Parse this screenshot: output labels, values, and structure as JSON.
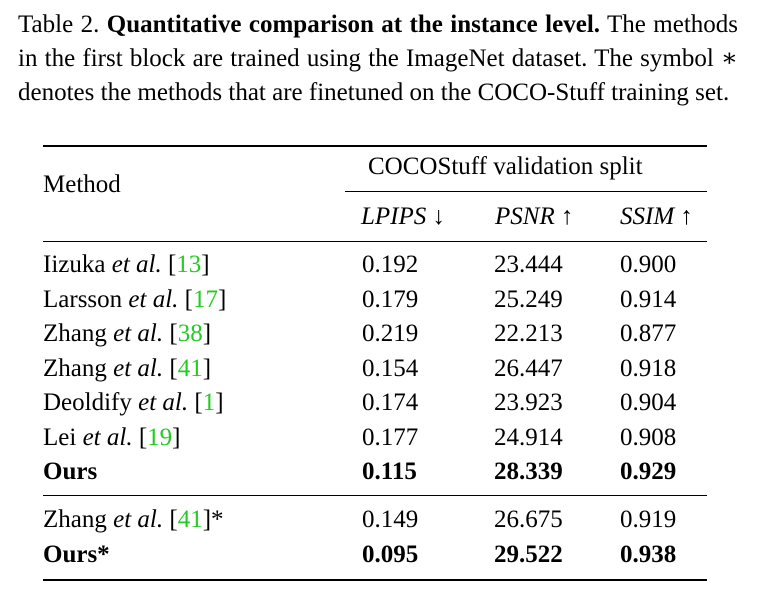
{
  "caption": {
    "label": "Table 2.",
    "title": "Quantitative comparison at the instance level.",
    "body": "The methods in the first block are trained using the ImageNet dataset. The symbol ∗ denotes the methods that are finetuned on the COCO-Stuff training set."
  },
  "table": {
    "method_header": "Method",
    "group_header": "COCOStuff validation split",
    "columns": [
      "LPIPS ↓",
      "PSNR ↑",
      "SSIM ↑"
    ],
    "rows": [
      {
        "name": "Iizuka",
        "etal": "et al.",
        "ref": "13",
        "suffix": "",
        "values": [
          "0.192",
          "23.444",
          "0.900"
        ],
        "bold": false
      },
      {
        "name": "Larsson",
        "etal": "et al.",
        "ref": "17",
        "suffix": "",
        "values": [
          "0.179",
          "25.249",
          "0.914"
        ],
        "bold": false
      },
      {
        "name": "Zhang",
        "etal": "et al.",
        "ref": "38",
        "suffix": "",
        "values": [
          "0.219",
          "22.213",
          "0.877"
        ],
        "bold": false
      },
      {
        "name": "Zhang",
        "etal": "et al.",
        "ref": "41",
        "suffix": "",
        "values": [
          "0.154",
          "26.447",
          "0.918"
        ],
        "bold": false
      },
      {
        "name": "Deoldify",
        "etal": "et al.",
        "ref": "1",
        "suffix": "",
        "values": [
          "0.174",
          "23.923",
          "0.904"
        ],
        "bold": false
      },
      {
        "name": "Lei",
        "etal": "et al.",
        "ref": "19",
        "suffix": "",
        "values": [
          "0.177",
          "24.914",
          "0.908"
        ],
        "bold": false
      },
      {
        "name": "Ours",
        "etal": "",
        "ref": "",
        "suffix": "",
        "values": [
          "0.115",
          "28.339",
          "0.929"
        ],
        "bold": true
      }
    ],
    "rows2": [
      {
        "name": "Zhang",
        "etal": "et al.",
        "ref": "41",
        "suffix": "*",
        "values": [
          "0.149",
          "26.675",
          "0.919"
        ],
        "bold": false
      },
      {
        "name": "Ours*",
        "etal": "",
        "ref": "",
        "suffix": "",
        "values": [
          "0.095",
          "29.522",
          "0.938"
        ],
        "bold": true
      }
    ]
  }
}
